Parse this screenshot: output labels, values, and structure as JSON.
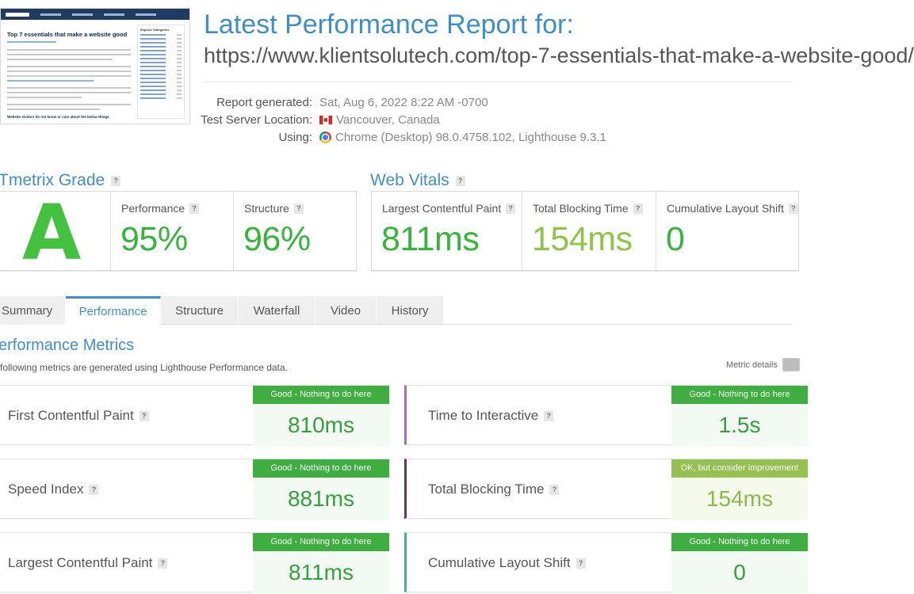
{
  "thumbnail": {
    "title": "Top 7 essentials that make a website good",
    "section_heading": "Website visitors do not know or care about the below things",
    "sidebar_title": "Explore Categories"
  },
  "report": {
    "title": "Latest Performance Report for:",
    "url": "https://www.klientsolutech.com/top-7-essentials-that-make-a-website-good/",
    "meta": [
      {
        "label": "Report generated:",
        "value": "Sat, Aug 6, 2022 8:22 AM -0700",
        "icon": "none"
      },
      {
        "label": "Test Server Location:",
        "value": "Vancouver, Canada",
        "icon": "canada-flag-icon"
      },
      {
        "label": "Using:",
        "value": "Chrome (Desktop) 98.0.4758.102, Lighthouse 9.3.1",
        "icon": "chrome-icon"
      }
    ]
  },
  "grade": {
    "heading": "Tmetrix Grade",
    "letter": "A",
    "performance_label": "Performance",
    "performance_value": "95%",
    "structure_label": "Structure",
    "structure_value": "96%"
  },
  "web_vitals": {
    "heading": "Web Vitals",
    "items": [
      {
        "label": "Largest Contentful Paint",
        "value": "811ms"
      },
      {
        "label": "Total Blocking Time",
        "value": "154ms"
      },
      {
        "label": "Cumulative Layout Shift",
        "value": "0"
      }
    ]
  },
  "tabs": [
    "Summary",
    "Performance",
    "Structure",
    "Waterfall",
    "Video",
    "History"
  ],
  "active_tab": "Performance",
  "performance_metrics": {
    "heading": "erformance Metrics",
    "description": "following metrics are generated using Lighthouse Performance data.",
    "metric_details_label": "Metric details",
    "metrics": [
      {
        "name": "First Contentful Paint",
        "status": "Good - Nothing to do here",
        "value": "810ms",
        "bar_color": ""
      },
      {
        "name": "Time to Interactive",
        "status": "Good - Nothing to do here",
        "value": "1.5s",
        "bar_color": "#a46fc0"
      },
      {
        "name": "Speed Index",
        "status": "Good - Nothing to do here",
        "value": "881ms",
        "bar_color": ""
      },
      {
        "name": "Total Blocking Time",
        "status": "OK, but consider improvement",
        "value": "154ms",
        "bar_color": "#5a3d5e"
      },
      {
        "name": "Largest Contentful Paint",
        "status": "Good - Nothing to do here",
        "value": "811ms",
        "bar_color": ""
      },
      {
        "name": "Cumulative Layout Shift",
        "status": "Good - Nothing to do here",
        "value": "0",
        "bar_color": "#3fb393"
      }
    ]
  },
  "colors": {
    "brand_blue": "#3e8fc7",
    "good_green": "#3dae3f",
    "ok_green": "#95c151"
  }
}
